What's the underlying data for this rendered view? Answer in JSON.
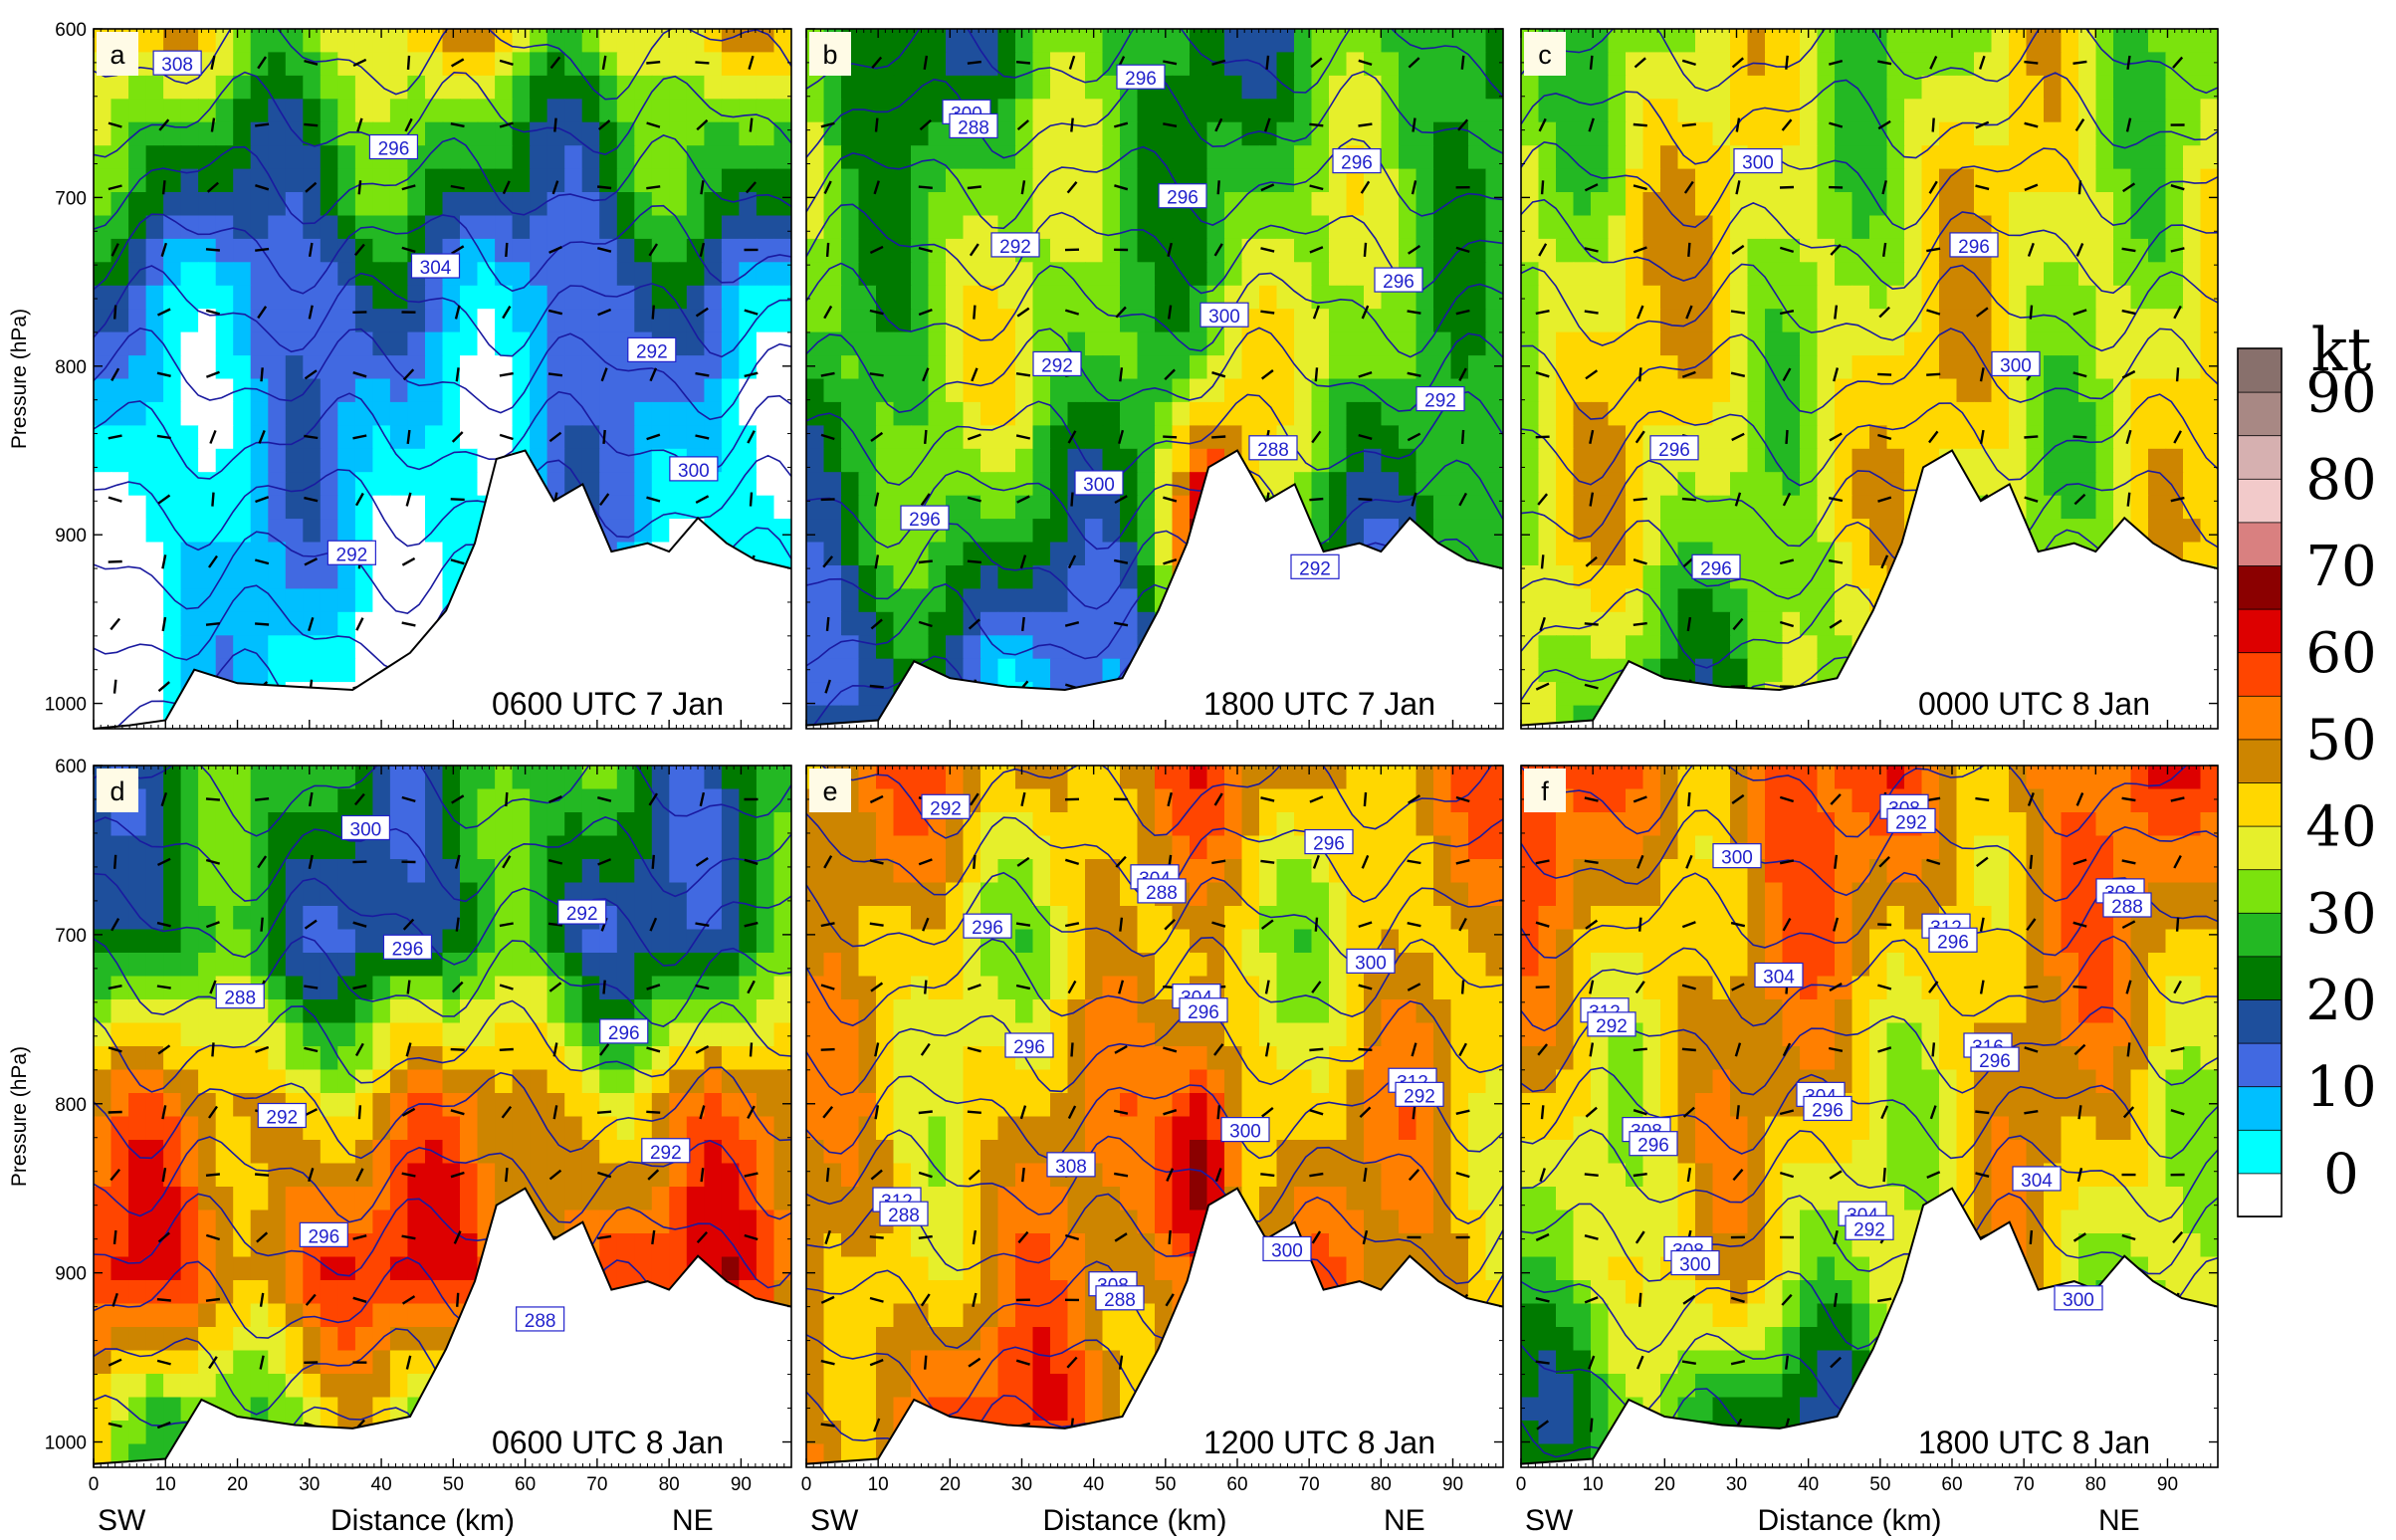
{
  "chart_data": {
    "type": "heatmap",
    "description_source": "six cross-section panels of wind speed (shaded, kt) with potential temperature contours (labelled, K) and wind vectors",
    "shared": {
      "xlabel": "Distance (km)",
      "ylabel": "Pressure (hPa)",
      "x_ticks": [
        0,
        10,
        20,
        30,
        40,
        50,
        60,
        70,
        80,
        90
      ],
      "y_ticks": [
        600,
        700,
        800,
        900,
        1000
      ],
      "xlim": [
        0,
        97
      ],
      "ylim": [
        1015,
        600
      ],
      "x_end_labels": {
        "left": "SW",
        "right": "NE"
      }
    },
    "colorbar": {
      "unit": "kt",
      "levels": [
        0,
        5,
        10,
        15,
        20,
        25,
        30,
        35,
        40,
        45,
        50,
        55,
        60,
        65,
        70,
        75,
        80,
        85,
        90,
        95,
        100
      ],
      "labels": [
        "0",
        "10",
        "20",
        "30",
        "40",
        "50",
        "60",
        "70",
        "80",
        "90"
      ],
      "colors": [
        "#ffffff",
        "#00ffff",
        "#00bfff",
        "#4169e1",
        "#1e4f9c",
        "#007a00",
        "#23b823",
        "#7be30d",
        "#e6ef2b",
        "#ffd700",
        "#cd8500",
        "#ff7f00",
        "#ff4500",
        "#dd0000",
        "#8b0000",
        "#d98080",
        "#f2caca",
        "#d6b0b0",
        "#a88884",
        "#88706c"
      ]
    },
    "panels": [
      {
        "letter": "a",
        "time": "0600 UTC 7 Jan",
        "isentrope_labels": [
          "308",
          "304",
          "300",
          "296",
          "292",
          "292"
        ],
        "terrain_pressure": [
          {
            "x": 0,
            "p": 1015
          },
          {
            "x": 5,
            "p": 1013
          },
          {
            "x": 10,
            "p": 1010
          },
          {
            "x": 14,
            "p": 980
          },
          {
            "x": 20,
            "p": 988
          },
          {
            "x": 28,
            "p": 990
          },
          {
            "x": 36,
            "p": 992
          },
          {
            "x": 44,
            "p": 970
          },
          {
            "x": 49,
            "p": 945
          },
          {
            "x": 53,
            "p": 905
          },
          {
            "x": 56,
            "p": 855
          },
          {
            "x": 60,
            "p": 850
          },
          {
            "x": 64,
            "p": 880
          },
          {
            "x": 68,
            "p": 870
          },
          {
            "x": 72,
            "p": 910
          },
          {
            "x": 77,
            "p": 905
          },
          {
            "x": 80,
            "p": 910
          },
          {
            "x": 84,
            "p": 890
          },
          {
            "x": 88,
            "p": 905
          },
          {
            "x": 92,
            "p": 915
          },
          {
            "x": 97,
            "p": 920
          }
        ],
        "speed_layers_kt": [
          {
            "p": 600,
            "v": 45
          },
          {
            "p": 650,
            "v": 33
          },
          {
            "p": 700,
            "v": 27
          },
          {
            "p": 750,
            "v": 17
          },
          {
            "p": 820,
            "v": 12
          },
          {
            "p": 900,
            "v": 10
          },
          {
            "p": 980,
            "v": 6
          }
        ]
      },
      {
        "letter": "b",
        "time": "1800 UTC 7 Jan",
        "isentrope_labels": [
          "300",
          "300",
          "296",
          "296",
          "292",
          "296",
          "296",
          "300",
          "296",
          "292",
          "292",
          "292",
          "288",
          "288"
        ],
        "terrain_pressure": [
          {
            "x": 0,
            "p": 1013
          },
          {
            "x": 10,
            "p": 1010
          },
          {
            "x": 15,
            "p": 975
          },
          {
            "x": 20,
            "p": 985
          },
          {
            "x": 28,
            "p": 990
          },
          {
            "x": 36,
            "p": 992
          },
          {
            "x": 44,
            "p": 985
          },
          {
            "x": 49,
            "p": 945
          },
          {
            "x": 53,
            "p": 905
          },
          {
            "x": 56,
            "p": 860
          },
          {
            "x": 60,
            "p": 850
          },
          {
            "x": 64,
            "p": 880
          },
          {
            "x": 68,
            "p": 870
          },
          {
            "x": 72,
            "p": 910
          },
          {
            "x": 77,
            "p": 905
          },
          {
            "x": 80,
            "p": 910
          },
          {
            "x": 84,
            "p": 890
          },
          {
            "x": 88,
            "p": 905
          },
          {
            "x": 92,
            "p": 915
          },
          {
            "x": 97,
            "p": 920
          }
        ],
        "speed_layers_kt": [
          {
            "p": 600,
            "v": 30
          },
          {
            "p": 700,
            "v": 36
          },
          {
            "p": 800,
            "v": 38
          },
          {
            "p": 900,
            "v": 30
          },
          {
            "p": 980,
            "v": 18
          }
        ],
        "maxima_kt": [
          {
            "x": 56,
            "p": 890,
            "v": 68
          }
        ]
      },
      {
        "letter": "c",
        "time": "0000 UTC 8 Jan",
        "isentrope_labels": [
          "300",
          "300",
          "296",
          "296",
          "296"
        ],
        "terrain_pressure": [
          {
            "x": 0,
            "p": 1013
          },
          {
            "x": 10,
            "p": 1010
          },
          {
            "x": 15,
            "p": 975
          },
          {
            "x": 20,
            "p": 985
          },
          {
            "x": 28,
            "p": 990
          },
          {
            "x": 36,
            "p": 992
          },
          {
            "x": 44,
            "p": 985
          },
          {
            "x": 49,
            "p": 945
          },
          {
            "x": 53,
            "p": 905
          },
          {
            "x": 56,
            "p": 860
          },
          {
            "x": 60,
            "p": 850
          },
          {
            "x": 64,
            "p": 880
          },
          {
            "x": 68,
            "p": 870
          },
          {
            "x": 72,
            "p": 910
          },
          {
            "x": 77,
            "p": 905
          },
          {
            "x": 80,
            "p": 910
          },
          {
            "x": 84,
            "p": 890
          },
          {
            "x": 88,
            "p": 905
          },
          {
            "x": 92,
            "p": 915
          },
          {
            "x": 97,
            "p": 920
          }
        ],
        "speed_layers_kt": [
          {
            "p": 600,
            "v": 40
          },
          {
            "p": 700,
            "v": 43
          },
          {
            "p": 800,
            "v": 44
          },
          {
            "p": 900,
            "v": 42
          },
          {
            "p": 980,
            "v": 35
          }
        ]
      },
      {
        "letter": "d",
        "time": "0600 UTC 8 Jan",
        "isentrope_labels": [
          "296",
          "292",
          "300",
          "296",
          "296",
          "292",
          "292",
          "288",
          "288"
        ],
        "terrain_pressure": [
          {
            "x": 0,
            "p": 1013
          },
          {
            "x": 10,
            "p": 1010
          },
          {
            "x": 15,
            "p": 975
          },
          {
            "x": 20,
            "p": 985
          },
          {
            "x": 28,
            "p": 990
          },
          {
            "x": 36,
            "p": 992
          },
          {
            "x": 44,
            "p": 985
          },
          {
            "x": 49,
            "p": 945
          },
          {
            "x": 53,
            "p": 905
          },
          {
            "x": 56,
            "p": 860
          },
          {
            "x": 60,
            "p": 850
          },
          {
            "x": 64,
            "p": 880
          },
          {
            "x": 68,
            "p": 870
          },
          {
            "x": 72,
            "p": 910
          },
          {
            "x": 77,
            "p": 905
          },
          {
            "x": 80,
            "p": 910
          },
          {
            "x": 84,
            "p": 890
          },
          {
            "x": 88,
            "p": 905
          },
          {
            "x": 92,
            "p": 915
          },
          {
            "x": 97,
            "p": 920
          }
        ],
        "speed_layers_kt": [
          {
            "p": 600,
            "v": 30
          },
          {
            "p": 700,
            "v": 25
          },
          {
            "p": 800,
            "v": 52
          },
          {
            "p": 900,
            "v": 62
          },
          {
            "p": 980,
            "v": 40
          }
        ]
      },
      {
        "letter": "e",
        "time": "1200 UTC 8 Jan",
        "isentrope_labels": [
          "304",
          "312",
          "304",
          "312",
          "308",
          "300",
          "308",
          "296",
          "296",
          "300",
          "296",
          "300",
          "292",
          "296",
          "288",
          "288",
          "292",
          "288"
        ],
        "terrain_pressure": [
          {
            "x": 0,
            "p": 1013
          },
          {
            "x": 10,
            "p": 1010
          },
          {
            "x": 15,
            "p": 975
          },
          {
            "x": 20,
            "p": 985
          },
          {
            "x": 28,
            "p": 990
          },
          {
            "x": 36,
            "p": 992
          },
          {
            "x": 44,
            "p": 985
          },
          {
            "x": 49,
            "p": 945
          },
          {
            "x": 53,
            "p": 905
          },
          {
            "x": 56,
            "p": 860
          },
          {
            "x": 60,
            "p": 850
          },
          {
            "x": 64,
            "p": 880
          },
          {
            "x": 68,
            "p": 870
          },
          {
            "x": 72,
            "p": 910
          },
          {
            "x": 77,
            "p": 905
          },
          {
            "x": 80,
            "p": 910
          },
          {
            "x": 84,
            "p": 890
          },
          {
            "x": 88,
            "p": 905
          },
          {
            "x": 92,
            "p": 915
          },
          {
            "x": 97,
            "p": 920
          }
        ],
        "speed_layers_kt": [
          {
            "p": 600,
            "v": 55
          },
          {
            "p": 700,
            "v": 45
          },
          {
            "p": 800,
            "v": 50
          },
          {
            "p": 900,
            "v": 52
          },
          {
            "p": 980,
            "v": 58
          }
        ],
        "maxima_kt": [
          {
            "x": 55,
            "p": 840,
            "v": 82
          }
        ]
      },
      {
        "letter": "f",
        "time": "1800 UTC 8 Jan",
        "isentrope_labels": [
          "316",
          "308",
          "312",
          "308",
          "308",
          "312",
          "304",
          "308",
          "304",
          "300",
          "304",
          "304",
          "300",
          "296",
          "300",
          "296",
          "296",
          "292",
          "292",
          "292",
          "288",
          "296"
        ],
        "terrain_pressure": [
          {
            "x": 0,
            "p": 1013
          },
          {
            "x": 10,
            "p": 1010
          },
          {
            "x": 15,
            "p": 975
          },
          {
            "x": 20,
            "p": 985
          },
          {
            "x": 28,
            "p": 990
          },
          {
            "x": 36,
            "p": 992
          },
          {
            "x": 44,
            "p": 985
          },
          {
            "x": 49,
            "p": 945
          },
          {
            "x": 53,
            "p": 905
          },
          {
            "x": 56,
            "p": 860
          },
          {
            "x": 60,
            "p": 850
          },
          {
            "x": 64,
            "p": 880
          },
          {
            "x": 68,
            "p": 870
          },
          {
            "x": 72,
            "p": 910
          },
          {
            "x": 77,
            "p": 905
          },
          {
            "x": 80,
            "p": 910
          },
          {
            "x": 84,
            "p": 890
          },
          {
            "x": 88,
            "p": 905
          },
          {
            "x": 92,
            "p": 915
          },
          {
            "x": 97,
            "p": 920
          }
        ],
        "speed_layers_kt": [
          {
            "p": 600,
            "v": 58
          },
          {
            "p": 700,
            "v": 52
          },
          {
            "p": 800,
            "v": 48
          },
          {
            "p": 900,
            "v": 44
          },
          {
            "p": 980,
            "v": 30
          }
        ]
      }
    ]
  }
}
